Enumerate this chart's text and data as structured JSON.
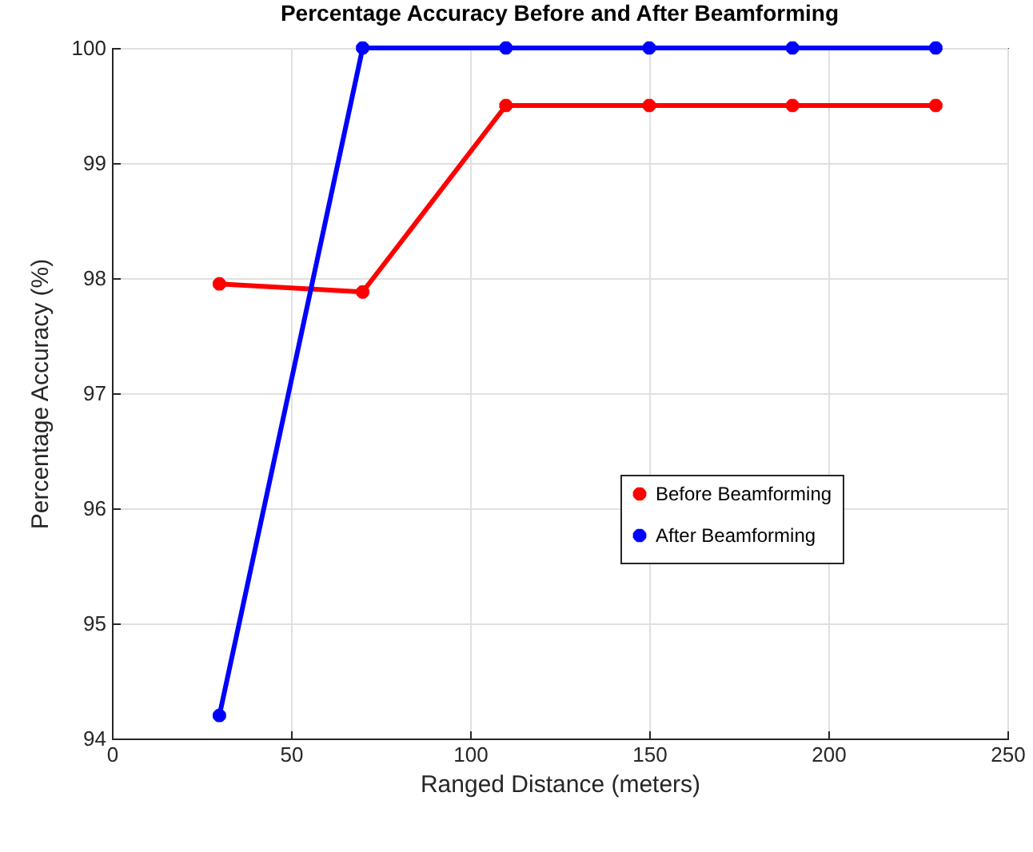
{
  "chart_data": {
    "type": "line",
    "title": "Percentage Accuracy Before and After Beamforming",
    "xlabel": "Ranged Distance (meters)",
    "ylabel": "Percentage Accuracy (%)",
    "x": [
      30,
      70,
      110,
      150,
      190,
      230
    ],
    "series": [
      {
        "name": "Before Beamforming",
        "color": "#ff0000",
        "values": [
          97.95,
          97.88,
          99.5,
          99.5,
          99.5,
          99.5
        ]
      },
      {
        "name": "After Beamforming",
        "color": "#0000ff",
        "values": [
          94.2,
          100,
          100,
          100,
          100,
          100
        ]
      }
    ],
    "xlim": [
      0,
      250
    ],
    "xticks": [
      0,
      50,
      100,
      150,
      200,
      250
    ],
    "ylim": [
      94,
      100
    ],
    "yticks": [
      94,
      95,
      96,
      97,
      98,
      99,
      100
    ],
    "grid": true,
    "legend": "right",
    "marker": "cross",
    "line_style": "solid"
  }
}
